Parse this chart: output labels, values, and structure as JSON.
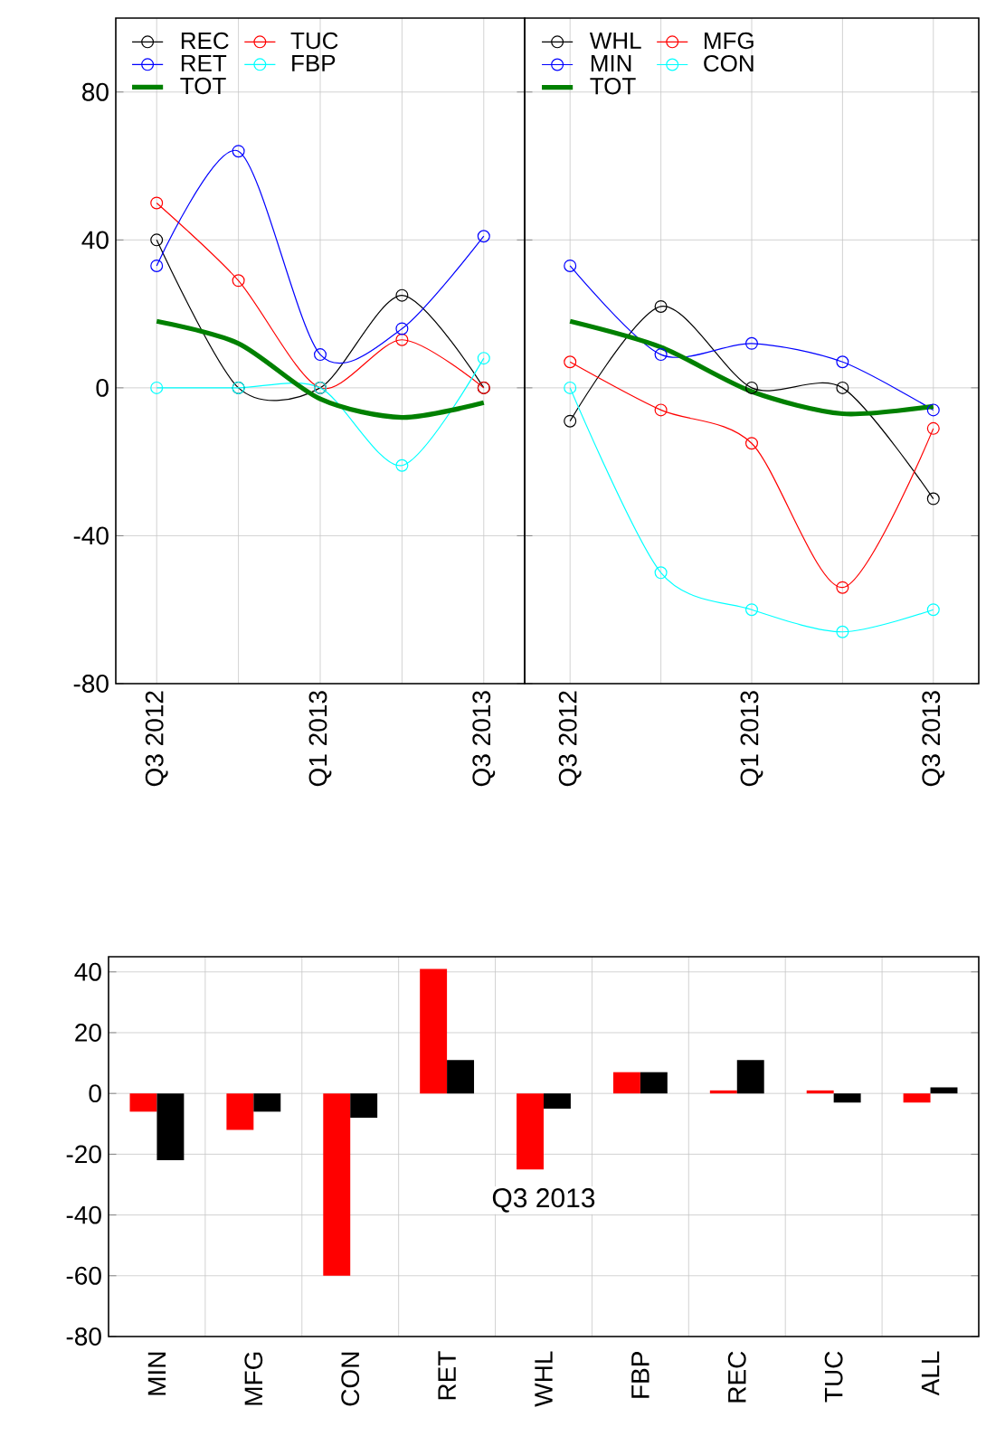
{
  "chart_data": [
    {
      "type": "line",
      "categories": [
        "Q3 2012",
        null,
        "Q1 2013",
        null,
        "Q3 2013"
      ],
      "ylim": [
        -80,
        100
      ],
      "yticks": [
        -80,
        -40,
        0,
        40,
        80
      ],
      "grid": true,
      "legend": "top left",
      "marker": "circle",
      "series": [
        {
          "name": "REC",
          "color": "#000000",
          "values": [
            40,
            0,
            0,
            25,
            0
          ]
        },
        {
          "name": "TUC",
          "color": "#ff0000",
          "values": [
            50,
            29,
            0,
            13,
            0
          ]
        },
        {
          "name": "RET",
          "color": "#0000ff",
          "values": [
            33,
            64,
            9,
            16,
            41
          ]
        },
        {
          "name": "FBP",
          "color": "#00ffff",
          "values": [
            0,
            0,
            0,
            -21,
            8
          ]
        },
        {
          "name": "TOT",
          "color": "#008000",
          "marker": "none",
          "values": [
            18,
            12,
            -3,
            -8,
            -4
          ]
        }
      ]
    },
    {
      "type": "line",
      "categories": [
        "Q3 2012",
        null,
        "Q1 2013",
        null,
        "Q3 2013"
      ],
      "ylim": [
        -80,
        100
      ],
      "grid": true,
      "legend": "top left",
      "marker": "circle",
      "tick_labels": "x",
      "series": [
        {
          "name": "WHL",
          "color": "#000000",
          "values": [
            -9,
            22,
            0,
            0,
            -30
          ]
        },
        {
          "name": "MFG",
          "color": "#ff0000",
          "values": [
            7,
            -6,
            -15,
            -54,
            -11
          ]
        },
        {
          "name": "MIN",
          "color": "#0000ff",
          "values": [
            33,
            9,
            12,
            7,
            -6
          ]
        },
        {
          "name": "CON",
          "color": "#00ffff",
          "values": [
            0,
            -50,
            -60,
            -66,
            -60
          ]
        },
        {
          "name": "TOT",
          "color": "#008000",
          "marker": "none",
          "values": [
            18,
            11,
            -1,
            -7,
            -5
          ]
        }
      ]
    },
    {
      "type": "bar",
      "title": "Q3 2013",
      "categories": [
        "MIN",
        "MFG",
        "CON",
        "RET",
        "WHL",
        "FBP",
        "REC",
        "TUC",
        "ALL"
      ],
      "ylim": [
        -80,
        45
      ],
      "yticks": [
        -80,
        -60,
        -40,
        -20,
        0,
        20,
        40
      ],
      "grid": true,
      "series": [
        {
          "color": "#ff0000",
          "values": [
            -6,
            -12,
            -60,
            41,
            -25,
            7,
            1,
            1,
            -3
          ]
        },
        {
          "color": "#000000",
          "values": [
            -22,
            -6,
            -8,
            11,
            -5,
            7,
            11,
            -3,
            2
          ]
        }
      ]
    }
  ]
}
